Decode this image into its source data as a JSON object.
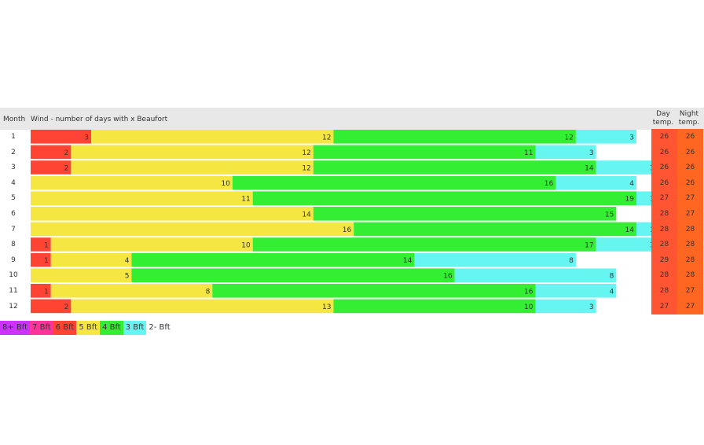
{
  "header": {
    "month_label": "Month",
    "wind_label": "Wind - number of days with x Beaufort",
    "day_temp_line1": "Day",
    "day_temp_line2": "temp.",
    "night_temp_line1": "Night",
    "night_temp_line2": "temp."
  },
  "legend": [
    {
      "label": "8+ Bft",
      "color": "#cc33ff"
    },
    {
      "label": "7 Bft",
      "color": "#ff3399"
    },
    {
      "label": "6 Bft",
      "color": "#ff4433"
    },
    {
      "label": "5 Bft",
      "color": "#f5e642"
    },
    {
      "label": "4 Bft",
      "color": "#33ee33"
    },
    {
      "label": "3 Bft",
      "color": "#66f5f0"
    },
    {
      "label": "2- Bft",
      "color": "#ffffff"
    }
  ],
  "chart_data": {
    "type": "bar",
    "orientation": "horizontal",
    "stacked": true,
    "categories": [
      "1",
      "2",
      "3",
      "4",
      "5",
      "6",
      "7",
      "8",
      "9",
      "10",
      "11",
      "12"
    ],
    "series": [
      {
        "name": "6 Bft",
        "color": "#ff4433",
        "values": [
          3,
          2,
          2,
          0,
          0,
          0,
          0,
          1,
          1,
          0,
          1,
          2
        ]
      },
      {
        "name": "5 Bft",
        "color": "#f5e642",
        "values": [
          12,
          12,
          12,
          10,
          11,
          14,
          16,
          10,
          4,
          5,
          8,
          13
        ]
      },
      {
        "name": "4 Bft",
        "color": "#33ee33",
        "values": [
          12,
          11,
          14,
          16,
          19,
          15,
          14,
          17,
          14,
          16,
          16,
          10
        ]
      },
      {
        "name": "3 Bft",
        "color": "#66f5f0",
        "values": [
          3,
          3,
          3,
          4,
          1,
          0,
          1,
          3,
          8,
          8,
          4,
          3
        ]
      }
    ],
    "day_temp": [
      26,
      26,
      26,
      26,
      27,
      28,
      28,
      28,
      29,
      28,
      28,
      27
    ],
    "night_temp": [
      26,
      26,
      26,
      26,
      27,
      27,
      28,
      28,
      28,
      28,
      27,
      27
    ],
    "title": "",
    "xlabel": "",
    "ylabel": "Month"
  }
}
